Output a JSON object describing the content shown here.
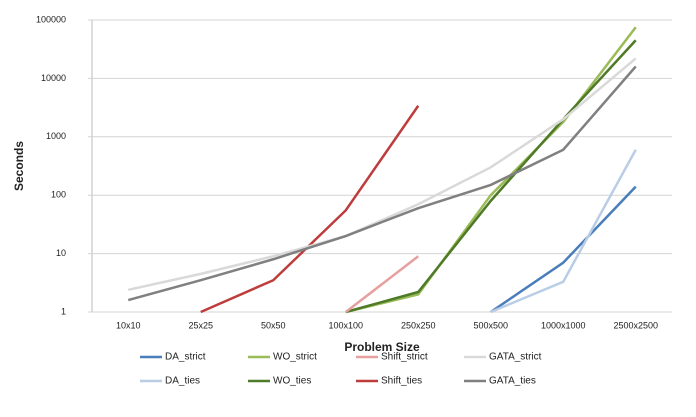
{
  "chart_data": {
    "type": "line",
    "log_scale": true,
    "grid": true,
    "x_label": "Problem Size",
    "y_label": "Seconds",
    "categories": [
      "10x10",
      "25x25",
      "50x50",
      "100x100",
      "250x250",
      "500x500",
      "1000x1000",
      "2500x2500"
    ],
    "ylim": [
      1,
      100000
    ],
    "yticks": [
      1,
      10,
      100,
      1000,
      10000,
      100000
    ],
    "legend": "bottom",
    "series": [
      {
        "name": "DA_strict",
        "color": "#4a7ebb",
        "values": [
          null,
          null,
          null,
          null,
          null,
          1,
          7,
          140
        ]
      },
      {
        "name": "DA_ties",
        "color": "#b9cde5",
        "values": [
          null,
          null,
          null,
          null,
          null,
          1,
          3.3,
          600
        ]
      },
      {
        "name": "WO_strict",
        "color": "#9bbb59",
        "values": [
          null,
          null,
          null,
          1,
          2,
          100,
          1800,
          75000
        ]
      },
      {
        "name": "WO_ties",
        "color": "#4f7a28",
        "values": [
          null,
          null,
          null,
          1,
          2.2,
          80,
          2000,
          45000
        ]
      },
      {
        "name": "Shift_strict",
        "color": "#e6a0a0",
        "values": [
          null,
          null,
          null,
          1,
          9,
          null,
          null,
          null
        ]
      },
      {
        "name": "Shift_ties",
        "color": "#be3c3c",
        "values": [
          null,
          1,
          3.5,
          55,
          3400,
          null,
          null,
          null
        ]
      },
      {
        "name": "GATA_strict",
        "color": "#d9d9d9",
        "values": [
          2.4,
          4.5,
          9,
          20,
          70,
          300,
          2000,
          22000
        ]
      },
      {
        "name": "GATA_ties",
        "color": "#808080",
        "values": [
          1.6,
          3.5,
          8,
          20,
          60,
          150,
          600,
          16000
        ]
      }
    ]
  }
}
